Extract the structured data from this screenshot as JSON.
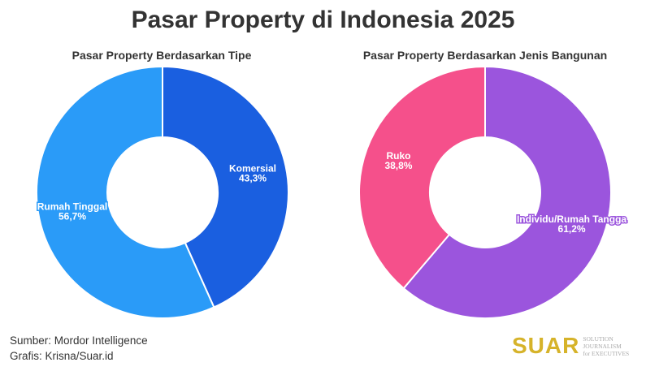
{
  "title": "Pasar Property di Indonesia 2025",
  "chart_data": [
    {
      "type": "pie",
      "subtitle": "Pasar Property Berdasarkan Tipe",
      "slices": [
        {
          "label": "Komersial",
          "value": 43.3,
          "display": "43,3%",
          "color": "#1a5fe0"
        },
        {
          "label": "Rumah Tinggal",
          "value": 56.7,
          "display": "56,7%",
          "color": "#2a9bf8"
        }
      ]
    },
    {
      "type": "pie",
      "subtitle": "Pasar Property Berdasarkan Jenis Bangunan",
      "slices": [
        {
          "label": "Individu/Rumah Tangga",
          "value": 61.2,
          "display": "61,2%",
          "color": "#9b55dd"
        },
        {
          "label": "Ruko",
          "value": 38.8,
          "display": "38,8%",
          "color": "#f5508b"
        }
      ]
    }
  ],
  "source": "Sumber: Mordor Intelligence",
  "credit": "Grafis: Krisna/Suar.id",
  "logo": {
    "name": "SUAR",
    "tagline1": "SOLUTION JOURNALISM",
    "tagline2": "for EXECUTIVES"
  }
}
